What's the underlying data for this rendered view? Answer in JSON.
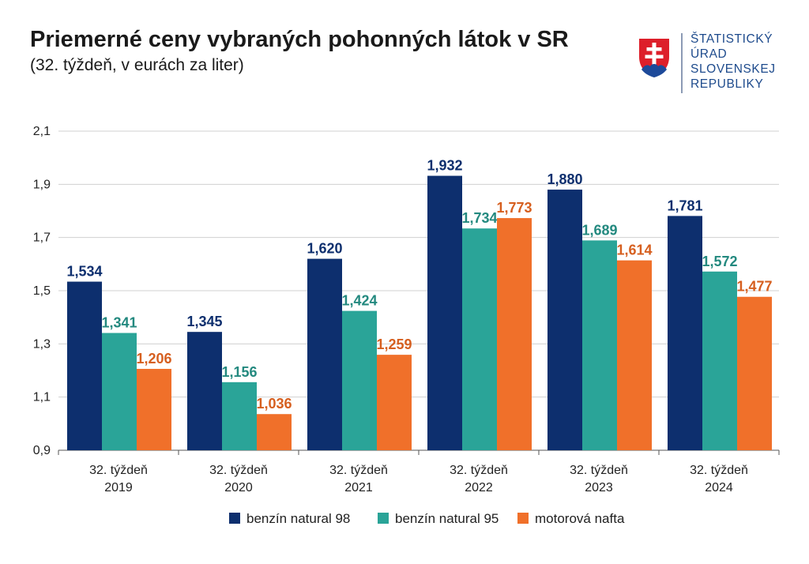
{
  "header": {
    "title": "Priemerné ceny vybraných pohonných látok v SR",
    "subtitle": "(32. týždeň, v eurách za liter)"
  },
  "logo": {
    "icon": "slovak-coat-of-arms",
    "lines": [
      "ŠTATISTICKÝ",
      "ÚRAD",
      "SLOVENSKEJ",
      "REPUBLIKY"
    ],
    "color": "#1d4a8c"
  },
  "chart_data": {
    "type": "bar",
    "categories": [
      [
        "32. týždeň",
        "2019"
      ],
      [
        "32. týždeň",
        "2020"
      ],
      [
        "32. týždeň",
        "2021"
      ],
      [
        "32. týždeň",
        "2022"
      ],
      [
        "32. týždeň",
        "2023"
      ],
      [
        "32. týždeň",
        "2024"
      ]
    ],
    "series": [
      {
        "name": "benzín natural 98",
        "color": "#0d2f6e",
        "labelColor": "#0d2f6e",
        "values": [
          1.534,
          1.345,
          1.62,
          1.932,
          1.88,
          1.781
        ],
        "labels": [
          "1,534",
          "1,345",
          "1,620",
          "1,932",
          "1,880",
          "1,781"
        ]
      },
      {
        "name": "benzín natural 95",
        "color": "#2aa498",
        "labelColor": "#23897f",
        "values": [
          1.341,
          1.156,
          1.424,
          1.734,
          1.689,
          1.572
        ],
        "labels": [
          "1,341",
          "1,156",
          "1,424",
          "1,734",
          "1,689",
          "1,572"
        ]
      },
      {
        "name": "motorová nafta",
        "color": "#f0702a",
        "labelColor": "#d65f1f",
        "values": [
          1.206,
          1.036,
          1.259,
          1.773,
          1.614,
          1.477
        ],
        "labels": [
          "1,206",
          "1,036",
          "1,259",
          "1,773",
          "1,614",
          "1,477"
        ]
      }
    ],
    "ylim": [
      0.9,
      2.1
    ],
    "yticks": [
      0.9,
      1.1,
      1.3,
      1.5,
      1.7,
      1.9,
      2.1
    ],
    "ytick_labels": [
      "0,9",
      "1,1",
      "1,3",
      "1,5",
      "1,7",
      "1,9",
      "2,1"
    ],
    "grid": true,
    "legend": "bottom"
  }
}
